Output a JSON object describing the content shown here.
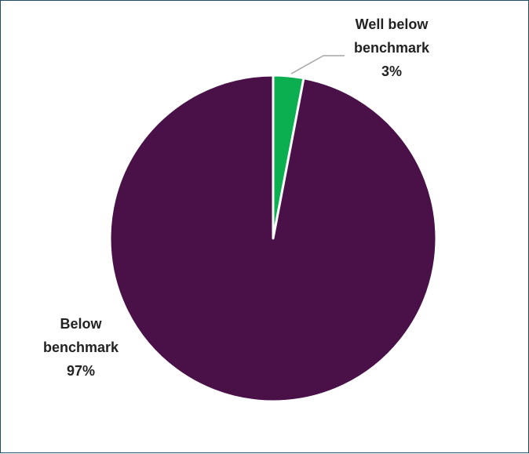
{
  "chart_data": {
    "type": "pie",
    "title": "",
    "slices": [
      {
        "label_lines": [
          "Well below",
          "benchmark"
        ],
        "value": 3,
        "percent_label": "3%",
        "color": "#0BAF4F"
      },
      {
        "label_lines": [
          "Below",
          "benchmark"
        ],
        "value": 97,
        "percent_label": "97%",
        "color": "#4A1148"
      }
    ],
    "slice_border_color": "#ffffff",
    "start_angle": "12 o'clock, clockwise",
    "legend": "none",
    "data_labels": "outside with leader line for small slice"
  }
}
